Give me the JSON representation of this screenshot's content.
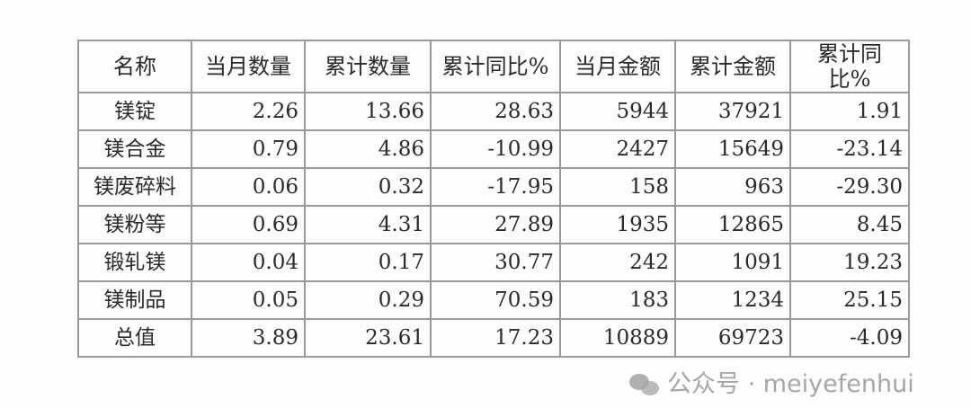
{
  "table": {
    "headers": [
      "名称",
      "当月数量",
      "累计数量",
      "累计同比%",
      "当月金额",
      "累计金额",
      "累计同比%"
    ],
    "rows": [
      [
        "镁锭",
        "2.26",
        "13.66",
        "28.63",
        "5944",
        "37921",
        "1.91"
      ],
      [
        "镁合金",
        "0.79",
        "4.86",
        "-10.99",
        "2427",
        "15649",
        "-23.14"
      ],
      [
        "镁废碎料",
        "0.06",
        "0.32",
        "-17.95",
        "158",
        "963",
        "-29.30"
      ],
      [
        "镁粉等",
        "0.69",
        "4.31",
        "27.89",
        "1935",
        "12865",
        "8.45"
      ],
      [
        "锻轧镁",
        "0.04",
        "0.17",
        "30.77",
        "242",
        "1091",
        "19.23"
      ],
      [
        "镁制品",
        "0.05",
        "0.29",
        "70.59",
        "183",
        "1234",
        "25.15"
      ],
      [
        "总值",
        "3.89",
        "23.61",
        "17.23",
        "10889",
        "69723",
        "-4.09"
      ]
    ]
  },
  "watermark": {
    "icon": "wechat-icon",
    "text": "公众号 · meiyefenhui"
  }
}
